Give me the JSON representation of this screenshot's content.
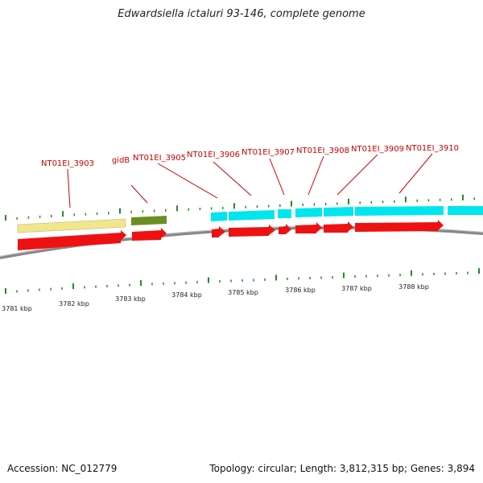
{
  "title": "Edwardsiella ictaluri 93-146, complete genome",
  "footer": {
    "accession": "Accession: NC_012779",
    "topology": "Topology: circular; Length: 3,812,315 bp; Genes: 3,894"
  },
  "gene_labels": [
    "NT01EI_3903",
    "gidB",
    "NT01EI_3905",
    "NT01EI_3906",
    "NT01EI_3907",
    "NT01EI_3908",
    "NT01EI_3909",
    "NT01EI_3910"
  ],
  "kbp_ticks": [
    "3781 kbp",
    "3782 kbp",
    "3783 kbp",
    "3784 kbp",
    "3785 kbp",
    "3786 kbp",
    "3787 kbp",
    "3788 kbp"
  ],
  "colors": {
    "cds": "#ee1111",
    "gene_cyan": "#00e5ee",
    "gene_khaki": "#f0e68c",
    "gene_olive": "#6b8e23",
    "tick_green": "#228b22",
    "backbone": "#777777",
    "label_red": "#cc0000"
  }
}
